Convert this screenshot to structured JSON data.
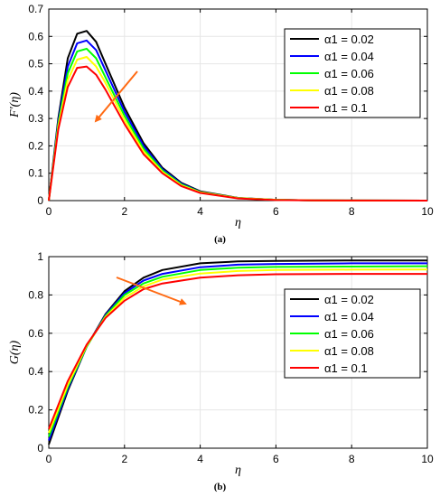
{
  "chart_data": [
    {
      "type": "line",
      "caption": "(a)",
      "xlabel": "η",
      "ylabel": "F′(η)",
      "xlim": [
        0,
        10
      ],
      "ylim": [
        0,
        0.7
      ],
      "xticks": [
        0,
        2,
        4,
        6,
        8,
        10
      ],
      "yticks": [
        0,
        0.1,
        0.2,
        0.3,
        0.4,
        0.5,
        0.6,
        0.7
      ],
      "grid": true,
      "legend_position": "top-right",
      "arrow": "downward (increasing α1)",
      "x": [
        0,
        0.25,
        0.5,
        0.75,
        1.0,
        1.25,
        1.5,
        2.0,
        2.5,
        3.0,
        3.5,
        4.0,
        5.0,
        6.0,
        7.0,
        8.0,
        10.0
      ],
      "series": [
        {
          "name": "α1 = 0.02",
          "color": "#000000",
          "values": [
            0,
            0.3,
            0.52,
            0.61,
            0.62,
            0.58,
            0.5,
            0.34,
            0.21,
            0.12,
            0.065,
            0.034,
            0.01,
            0.003,
            0.001,
            0.0004,
            0
          ]
        },
        {
          "name": "α1 = 0.04",
          "color": "#0000ff",
          "values": [
            0,
            0.29,
            0.49,
            0.575,
            0.585,
            0.55,
            0.475,
            0.325,
            0.2,
            0.115,
            0.062,
            0.032,
            0.009,
            0.003,
            0.001,
            0.0004,
            0
          ]
        },
        {
          "name": "α1 = 0.06",
          "color": "#00ff00",
          "values": [
            0,
            0.28,
            0.465,
            0.545,
            0.555,
            0.52,
            0.45,
            0.31,
            0.19,
            0.11,
            0.059,
            0.031,
            0.009,
            0.003,
            0.001,
            0.0004,
            0
          ]
        },
        {
          "name": "α1 = 0.08",
          "color": "#ffff00",
          "values": [
            0,
            0.27,
            0.44,
            0.515,
            0.525,
            0.49,
            0.43,
            0.295,
            0.18,
            0.105,
            0.056,
            0.03,
            0.009,
            0.003,
            0.001,
            0.0004,
            0
          ]
        },
        {
          "name": "α1 = 0.1",
          "color": "#ff0000",
          "values": [
            0,
            0.26,
            0.415,
            0.485,
            0.49,
            0.46,
            0.405,
            0.28,
            0.17,
            0.1,
            0.053,
            0.028,
            0.008,
            0.002,
            0.001,
            0.0003,
            0
          ]
        }
      ]
    },
    {
      "type": "line",
      "caption": "(b)",
      "xlabel": "η",
      "ylabel": "G(η)",
      "xlim": [
        0,
        10
      ],
      "ylim": [
        0,
        1
      ],
      "xticks": [
        0,
        2,
        4,
        6,
        8,
        10
      ],
      "yticks": [
        0,
        0.2,
        0.4,
        0.6,
        0.8,
        1
      ],
      "grid": true,
      "legend_position": "center-right",
      "arrow": "downward-right (increasing α1)",
      "x": [
        0,
        0.5,
        1.0,
        1.5,
        2.0,
        2.5,
        3.0,
        4.0,
        5.0,
        6.0,
        8.0,
        10.0
      ],
      "series": [
        {
          "name": "α1 = 0.02",
          "color": "#000000",
          "values": [
            0.02,
            0.3,
            0.53,
            0.7,
            0.82,
            0.89,
            0.93,
            0.965,
            0.975,
            0.978,
            0.98,
            0.98
          ]
        },
        {
          "name": "α1 = 0.04",
          "color": "#0000ff",
          "values": [
            0.04,
            0.31,
            0.53,
            0.695,
            0.81,
            0.875,
            0.91,
            0.945,
            0.958,
            0.962,
            0.965,
            0.965
          ]
        },
        {
          "name": "α1 = 0.06",
          "color": "#00ff00",
          "values": [
            0.06,
            0.32,
            0.53,
            0.69,
            0.8,
            0.86,
            0.895,
            0.93,
            0.942,
            0.946,
            0.948,
            0.95
          ]
        },
        {
          "name": "α1 = 0.08",
          "color": "#ffff00",
          "values": [
            0.08,
            0.33,
            0.535,
            0.685,
            0.785,
            0.845,
            0.88,
            0.912,
            0.925,
            0.93,
            0.932,
            0.933
          ]
        },
        {
          "name": "α1 = 0.1",
          "color": "#ff0000",
          "values": [
            0.1,
            0.35,
            0.54,
            0.68,
            0.77,
            0.83,
            0.86,
            0.89,
            0.903,
            0.908,
            0.91,
            0.91
          ]
        }
      ]
    }
  ],
  "colors": {
    "arrow": "#ff6a13",
    "grid": "#e6e6e6"
  }
}
